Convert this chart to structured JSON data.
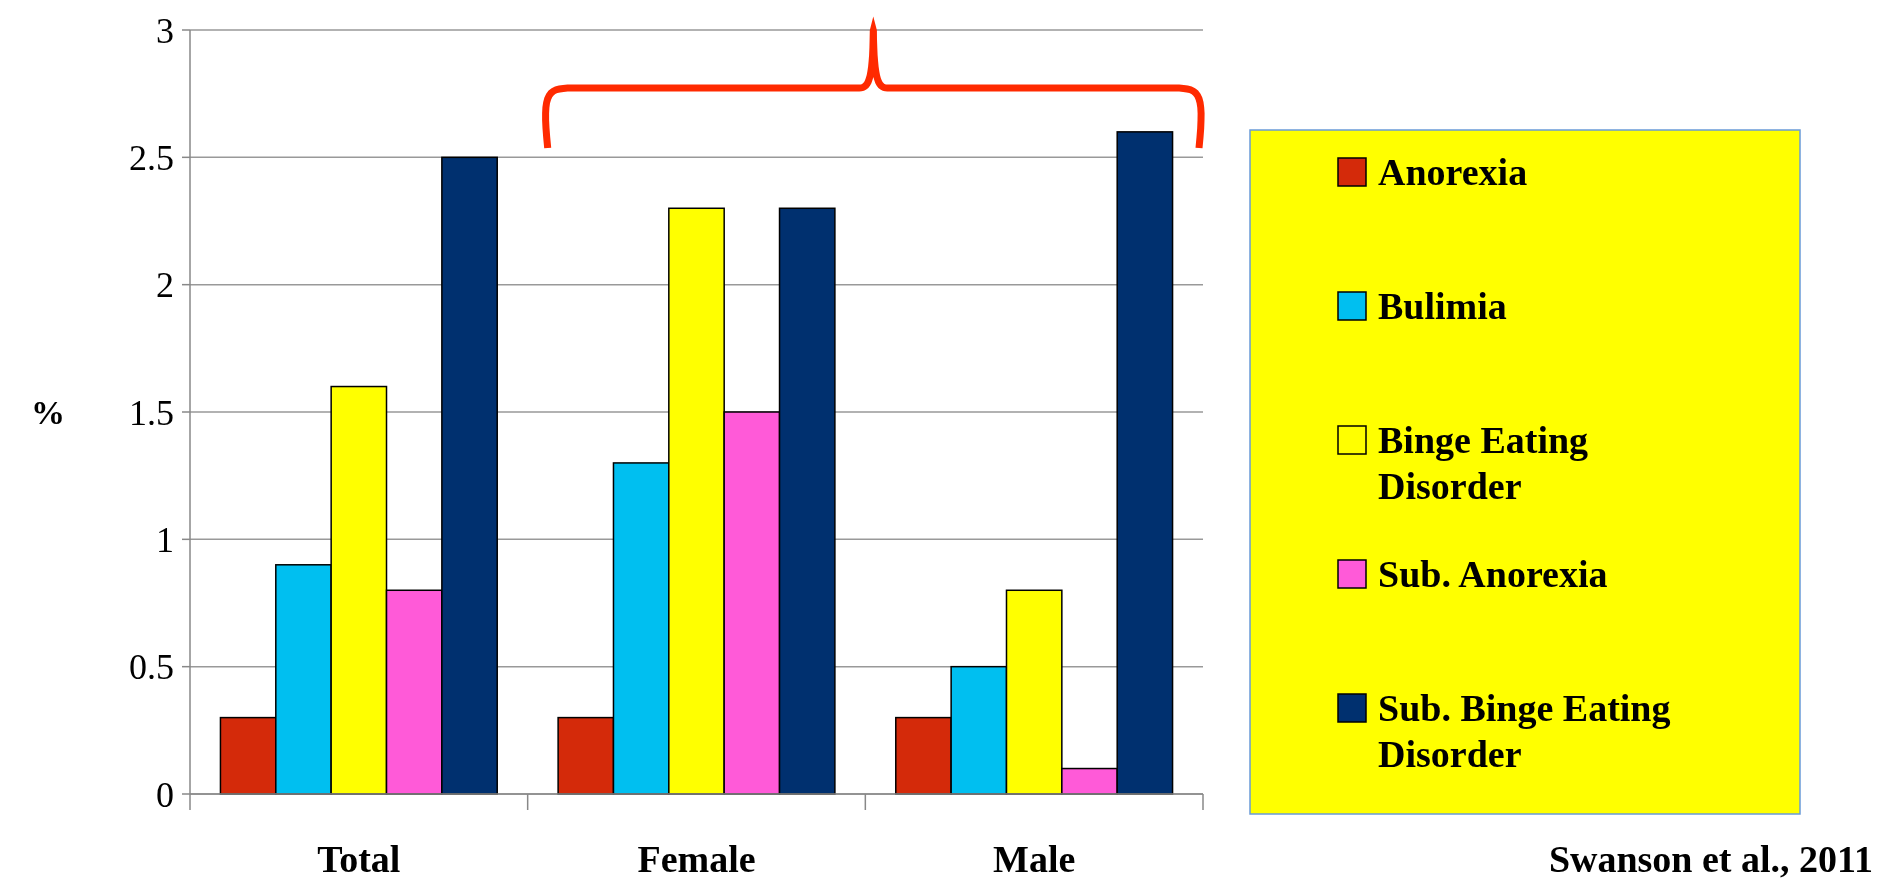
{
  "chart_data": {
    "type": "bar",
    "categories": [
      "Total",
      "Female",
      "Male"
    ],
    "series": [
      {
        "name": "Anorexia",
        "color": "#d42a0a",
        "values": [
          0.3,
          0.3,
          0.3
        ]
      },
      {
        "name": "Bulimia",
        "color": "#00bff0",
        "values": [
          0.9,
          1.3,
          0.5
        ]
      },
      {
        "name": "Binge Eating Disorder",
        "color": "#ffff00",
        "values": [
          1.6,
          2.3,
          0.8
        ]
      },
      {
        "name": "Sub. Anorexia",
        "color": "#ff5ad8",
        "values": [
          0.8,
          1.5,
          0.1
        ]
      },
      {
        "name": "Sub. Binge Eating Disorder",
        "color": "#00306f",
        "values": [
          2.5,
          2.3,
          2.6
        ]
      }
    ],
    "ylabel": "%",
    "ylim": [
      0,
      3
    ],
    "yticks": [
      0,
      0.5,
      1,
      1.5,
      2,
      2.5,
      3
    ],
    "grid": "y",
    "legend": "right",
    "annotations": [
      "Swanson et al., 2011"
    ]
  }
}
